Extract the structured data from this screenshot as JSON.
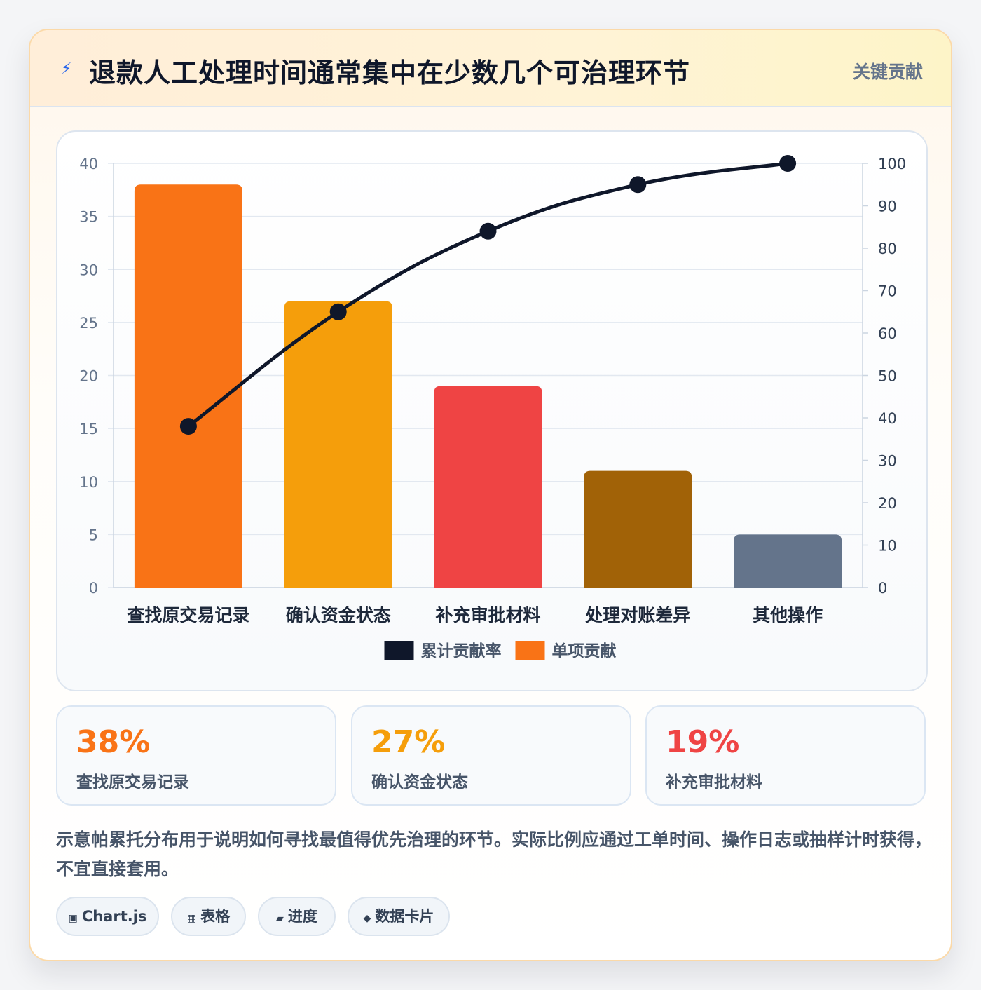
{
  "header": {
    "icon": "lightning-icon",
    "title": "退款人工处理时间通常集中在少数几个可治理环节",
    "badge": "关键贡献"
  },
  "chart_data": {
    "type": "bar",
    "categories": [
      "查找原交易记录",
      "确认资金状态",
      "补充审批材料",
      "处理对账差异",
      "其他操作"
    ],
    "series": [
      {
        "name": "单项贡献",
        "type": "bar",
        "axis": "left",
        "values": [
          38,
          27,
          19,
          11,
          5
        ],
        "colors": [
          "#f97316",
          "#f59e0b",
          "#ef4444",
          "#a16207",
          "#64748b"
        ]
      },
      {
        "name": "累计贡献率",
        "type": "line",
        "axis": "right",
        "values": [
          38,
          65,
          84,
          95,
          100
        ],
        "color": "#0f172a"
      }
    ],
    "ylim": [
      0,
      40
    ],
    "yticks": [
      0,
      5,
      10,
      15,
      20,
      25,
      30,
      35,
      40
    ],
    "y2lim": [
      0,
      100
    ],
    "y2ticks": [
      0,
      10,
      20,
      30,
      40,
      50,
      60,
      70,
      80,
      90,
      100
    ],
    "legend": [
      {
        "label": "累计贡献率",
        "color": "#0f172a"
      },
      {
        "label": "单项贡献",
        "color": "#f97316"
      }
    ],
    "legend_position": "bottom",
    "grid": true
  },
  "stats": [
    {
      "value": "38%",
      "label": "查找原交易记录",
      "color": "#f97316"
    },
    {
      "value": "27%",
      "label": "确认资金状态",
      "color": "#f59e0b"
    },
    {
      "value": "19%",
      "label": "补充审批材料",
      "color": "#ef4444"
    }
  ],
  "note": "示意帕累托分布用于说明如何寻找最值得优先治理的环节。实际比例应通过工单时间、操作日志或抽样计时获得，不宜直接套用。",
  "chips": [
    {
      "icon": "chart-icon",
      "glyph": "▣",
      "label": "Chart.js"
    },
    {
      "icon": "table-icon",
      "glyph": "▦",
      "label": "表格"
    },
    {
      "icon": "progress-icon",
      "glyph": "▰",
      "label": "进度"
    },
    {
      "icon": "data-card-icon",
      "glyph": "◆",
      "label": "数据卡片"
    }
  ]
}
